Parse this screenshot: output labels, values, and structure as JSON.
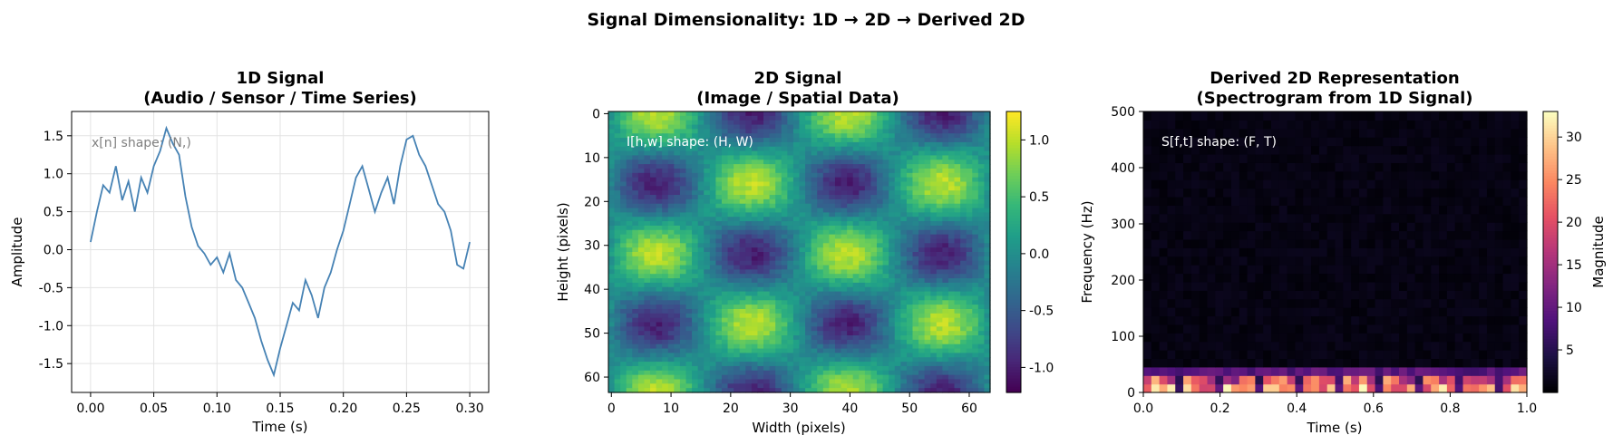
{
  "figure": {
    "suptitle": "Signal Dimensionality: 1D → 2D → Derived 2D"
  },
  "chart_data": [
    {
      "type": "line",
      "title_line1": "1D Signal",
      "title_line2": "(Audio / Sensor / Time Series)",
      "xlabel": "Time (s)",
      "ylabel": "Amplitude",
      "xlim": [
        -0.015,
        0.315
      ],
      "ylim": [
        -1.88,
        1.82
      ],
      "xticks": [
        0.0,
        0.05,
        0.1,
        0.15,
        0.2,
        0.25,
        0.3
      ],
      "xtick_labels": [
        "0.00",
        "0.05",
        "0.10",
        "0.15",
        "0.20",
        "0.25",
        "0.30"
      ],
      "yticks": [
        -1.5,
        -1.0,
        -0.5,
        0.0,
        0.5,
        1.0,
        1.5
      ],
      "ytick_labels": [
        "-1.5",
        "-1.0",
        "-0.5",
        "0.0",
        "0.5",
        "1.0",
        "1.5"
      ],
      "grid": true,
      "annotation": "x[n]  shape: (N,)",
      "line_color": "#4682b4",
      "series": [
        {
          "x": [
            0.0,
            0.005,
            0.01,
            0.015,
            0.02,
            0.025,
            0.03,
            0.035,
            0.04,
            0.045,
            0.05,
            0.055,
            0.06,
            0.065,
            0.07,
            0.075,
            0.08,
            0.085,
            0.09,
            0.095,
            0.1,
            0.105,
            0.11,
            0.115,
            0.12,
            0.125,
            0.13,
            0.135,
            0.14,
            0.145,
            0.15,
            0.155,
            0.16,
            0.165,
            0.17,
            0.175,
            0.18,
            0.185,
            0.19,
            0.195,
            0.2,
            0.205,
            0.21,
            0.215,
            0.22,
            0.225,
            0.23,
            0.235,
            0.24,
            0.245,
            0.25,
            0.255,
            0.26,
            0.265,
            0.27,
            0.275,
            0.28,
            0.285,
            0.29,
            0.295,
            0.3
          ],
          "values": [
            0.1,
            0.5,
            0.85,
            0.75,
            1.1,
            0.65,
            0.9,
            0.5,
            0.95,
            0.75,
            1.1,
            1.3,
            1.6,
            1.4,
            1.25,
            0.7,
            0.3,
            0.05,
            -0.05,
            -0.2,
            -0.1,
            -0.3,
            -0.05,
            -0.4,
            -0.5,
            -0.7,
            -0.9,
            -1.2,
            -1.45,
            -1.65,
            -1.3,
            -1.0,
            -0.7,
            -0.8,
            -0.4,
            -0.6,
            -0.9,
            -0.5,
            -0.3,
            0.0,
            0.25,
            0.6,
            0.95,
            1.1,
            0.8,
            0.5,
            0.75,
            0.95,
            0.6,
            1.1,
            1.45,
            1.5,
            1.25,
            1.1,
            0.85,
            0.6,
            0.5,
            0.25,
            -0.2,
            -0.25,
            0.1
          ]
        }
      ]
    },
    {
      "type": "heatmap",
      "title_line1": "2D Signal",
      "title_line2": "(Image / Spatial Data)",
      "xlabel": "Width (pixels)",
      "ylabel": "Height (pixels)",
      "grid_size": 64,
      "xlim": [
        -0.5,
        63.5
      ],
      "ylim": [
        63.5,
        -0.5
      ],
      "xticks": [
        0,
        10,
        20,
        30,
        40,
        50,
        60
      ],
      "xtick_labels": [
        "0",
        "10",
        "20",
        "30",
        "40",
        "50",
        "60"
      ],
      "yticks": [
        0,
        10,
        20,
        30,
        40,
        50,
        60
      ],
      "ytick_labels": [
        "0",
        "10",
        "20",
        "30",
        "40",
        "50",
        "60"
      ],
      "value_range": [
        -1.22,
        1.25
      ],
      "pattern": "sin(2π·w/32)·cos(2π·h/32) checkerboard with noise",
      "colormap": "viridis",
      "annotation": "I[h,w]  shape: (H, W)",
      "colorbar_ticks": [
        1.0,
        0.5,
        0.0,
        -0.5,
        -1.0
      ],
      "colorbar_labels": [
        "1.0",
        "0.5",
        "0.0",
        "-0.5",
        "-1.0"
      ]
    },
    {
      "type": "heatmap",
      "title_line1": "Derived 2D Representation",
      "title_line2": "(Spectrogram from 1D Signal)",
      "xlabel": "Time (s)",
      "ylabel": "Frequency (Hz)",
      "xlim": [
        0.0,
        1.0
      ],
      "ylim": [
        0,
        500
      ],
      "xticks": [
        0.0,
        0.2,
        0.4,
        0.6,
        0.8,
        1.0
      ],
      "xtick_labels": [
        "0.0",
        "0.2",
        "0.4",
        "0.6",
        "0.8",
        "1.0"
      ],
      "yticks": [
        0,
        100,
        200,
        300,
        400,
        500
      ],
      "ytick_labels": [
        "0",
        "100",
        "200",
        "300",
        "400",
        "500"
      ],
      "frequency_bins": 33,
      "time_frames": 48,
      "value_range": [
        0,
        33
      ],
      "colormap": "magma",
      "annotation": "S[f,t]  shape: (F, T)",
      "colorbar_label": "Magnitude",
      "colorbar_ticks": [
        30,
        25,
        20,
        15,
        10,
        5
      ],
      "colorbar_labels": [
        "30",
        "25",
        "20",
        "15",
        "10",
        "5"
      ]
    }
  ]
}
